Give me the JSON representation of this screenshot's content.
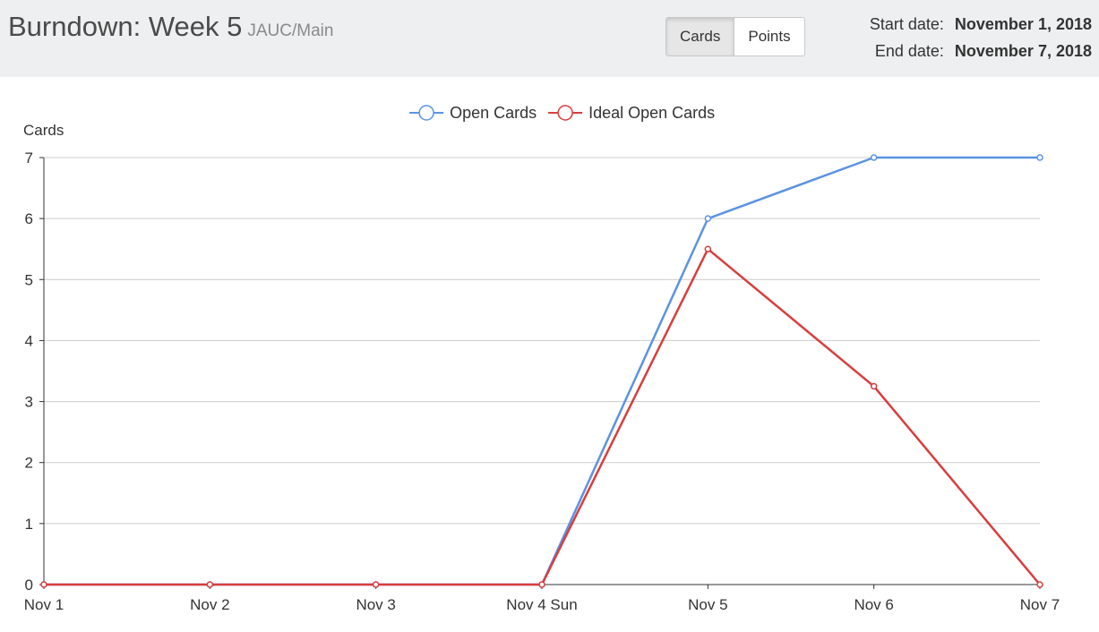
{
  "header": {
    "title": "Burndown: Week 5",
    "subtitle": "JAUC/Main",
    "toggle": {
      "cards_label": "Cards",
      "points_label": "Points",
      "active": "Cards"
    },
    "start_label": "Start date:",
    "start_value": "November 1, 2018",
    "end_label": "End date:",
    "end_value": "November 7, 2018"
  },
  "chart_data": {
    "type": "line",
    "title": "",
    "xlabel": "",
    "ylabel": "Cards",
    "ylim": [
      0,
      7
    ],
    "yticks": [
      0,
      1,
      2,
      3,
      4,
      5,
      6,
      7
    ],
    "categories": [
      "Nov 1",
      "Nov 2",
      "Nov 3",
      "Nov 4 Sun",
      "Nov 5",
      "Nov 6",
      "Nov 7"
    ],
    "grid": true,
    "legend_position": "top-center",
    "series": [
      {
        "name": "Open Cards",
        "color": "#5b93e2",
        "values": [
          0,
          0,
          0,
          0,
          6,
          7,
          7
        ]
      },
      {
        "name": "Ideal Open Cards",
        "color": "#d93d3d",
        "values": [
          0,
          0,
          0,
          0,
          5.5,
          3.25,
          0
        ]
      }
    ]
  }
}
